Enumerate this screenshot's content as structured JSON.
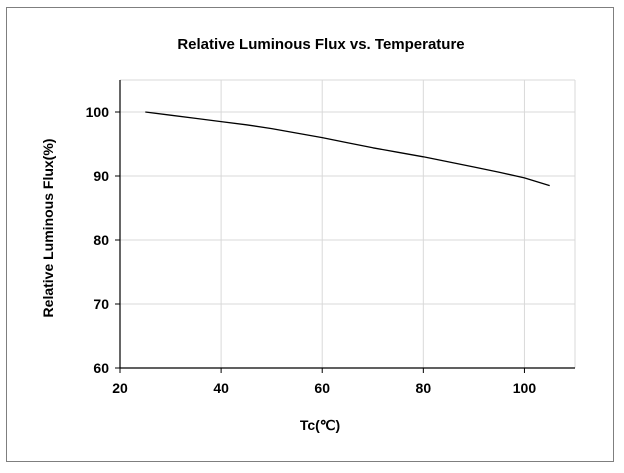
{
  "chart_data": {
    "type": "line",
    "title": "Relative Luminous  Flux vs. Temperature",
    "xlabel": "Tc(℃)",
    "ylabel": "Relative Luminous  Flux(%)",
    "xlim": [
      20,
      110
    ],
    "ylim": [
      60,
      105
    ],
    "xticks": [
      20,
      40,
      60,
      80,
      100
    ],
    "yticks": [
      60,
      70,
      80,
      90,
      100
    ],
    "grid": true,
    "legend": "none",
    "series": [
      {
        "color": "#000000",
        "x": [
          25,
          30,
          35,
          40,
          45,
          50,
          55,
          60,
          65,
          70,
          75,
          80,
          85,
          90,
          95,
          100,
          105
        ],
        "y": [
          100,
          99.5,
          99.0,
          98.5,
          98.0,
          97.4,
          96.7,
          96.0,
          95.2,
          94.4,
          93.7,
          93.0,
          92.2,
          91.4,
          90.6,
          89.7,
          88.5
        ]
      }
    ]
  }
}
